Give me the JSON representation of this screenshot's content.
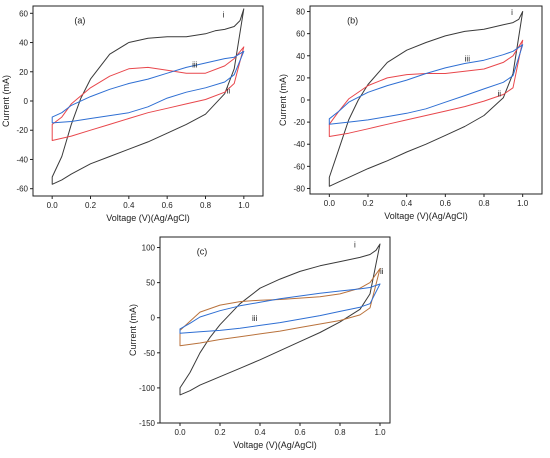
{
  "figure": {
    "colors": {
      "i": "#3a3a3a",
      "ii": "#e8474c",
      "iii": "#2f6fd3",
      "ii_c": "#b9723c"
    }
  },
  "chart_data": [
    {
      "type": "line",
      "panel_label": "(a)",
      "xlabel": "Voltage (V)(Ag/AgCl)",
      "ylabel": "Current (mA)",
      "xlim": [
        -0.1,
        1.1
      ],
      "ylim": [
        -65,
        65
      ],
      "xticks": [
        "0.0",
        "0.2",
        "0.4",
        "0.6",
        "0.8",
        "1.0"
      ],
      "yticks": [
        "-60",
        "-40",
        "-20",
        "0",
        "20",
        "40",
        "60"
      ],
      "series": [
        {
          "name": "i",
          "color": "#3a3a3a",
          "label_at": [
            0.89,
            57
          ],
          "x": [
            0.0,
            0.05,
            0.1,
            0.2,
            0.3,
            0.4,
            0.5,
            0.6,
            0.7,
            0.8,
            0.9,
            0.95,
            1.0,
            0.98,
            0.95,
            0.9,
            0.85,
            0.8,
            0.75,
            0.7,
            0.6,
            0.5,
            0.4,
            0.3,
            0.2,
            0.15,
            0.1,
            0.05,
            0.0
          ],
          "y": [
            -57,
            -54,
            -50,
            -43,
            -38,
            -33,
            -28,
            -22,
            -16,
            -9,
            5,
            22,
            63,
            55,
            51,
            49,
            48,
            46,
            45,
            44,
            44,
            43,
            40,
            32,
            15,
            2,
            -16,
            -38,
            -52
          ]
        },
        {
          "name": "ii",
          "color": "#e8474c",
          "label_at": [
            0.91,
            5
          ],
          "x": [
            0.0,
            0.1,
            0.2,
            0.3,
            0.4,
            0.5,
            0.6,
            0.7,
            0.8,
            0.9,
            0.95,
            1.0,
            0.95,
            0.9,
            0.8,
            0.7,
            0.6,
            0.5,
            0.4,
            0.3,
            0.2,
            0.1,
            0.05,
            0.0
          ],
          "y": [
            -27,
            -24,
            -20,
            -16,
            -12,
            -8,
            -5,
            -2,
            1,
            6,
            12,
            37,
            29,
            24,
            19,
            19,
            21,
            23,
            22,
            17,
            9,
            -2,
            -11,
            -16
          ]
        },
        {
          "name": "iii",
          "color": "#2f6fd3",
          "label_at": [
            0.73,
            23
          ],
          "x": [
            0.0,
            0.1,
            0.2,
            0.3,
            0.4,
            0.5,
            0.6,
            0.7,
            0.8,
            0.9,
            0.95,
            1.0,
            0.95,
            0.9,
            0.8,
            0.7,
            0.6,
            0.5,
            0.4,
            0.3,
            0.2,
            0.1,
            0.05,
            0.0
          ],
          "y": [
            -15,
            -14,
            -12,
            -10,
            -8,
            -4,
            2,
            6,
            9,
            13,
            18,
            34,
            30,
            29,
            26,
            23,
            19,
            15,
            12,
            8,
            3,
            -3,
            -8,
            -11
          ]
        }
      ]
    },
    {
      "type": "line",
      "panel_label": "(b)",
      "xlabel": "Voltage (V)(Ag/AgCl)",
      "ylabel": "Current (mA)",
      "xlim": [
        -0.1,
        1.1
      ],
      "ylim": [
        -85,
        85
      ],
      "xticks": [
        "0.0",
        "0.2",
        "0.4",
        "0.6",
        "0.8",
        "1.0"
      ],
      "yticks": [
        "-80",
        "-60",
        "-40",
        "-20",
        "0",
        "20",
        "40",
        "60",
        "80"
      ],
      "series": [
        {
          "name": "i",
          "color": "#3a3a3a",
          "label_at": [
            0.94,
            77
          ],
          "x": [
            0.0,
            0.05,
            0.1,
            0.2,
            0.3,
            0.4,
            0.5,
            0.6,
            0.7,
            0.8,
            0.9,
            0.95,
            1.0,
            0.98,
            0.95,
            0.9,
            0.85,
            0.8,
            0.7,
            0.6,
            0.5,
            0.4,
            0.3,
            0.2,
            0.15,
            0.1,
            0.05,
            0.0
          ],
          "y": [
            -78,
            -74,
            -70,
            -62,
            -55,
            -47,
            -40,
            -32,
            -24,
            -14,
            2,
            24,
            80,
            73,
            70,
            68,
            66,
            64,
            62,
            58,
            52,
            45,
            34,
            14,
            0,
            -18,
            -44,
            -70
          ]
        },
        {
          "name": "ii",
          "color": "#e8474c",
          "label_at": [
            0.87,
            3
          ],
          "x": [
            0.0,
            0.1,
            0.2,
            0.3,
            0.4,
            0.5,
            0.6,
            0.7,
            0.8,
            0.9,
            0.95,
            1.0,
            0.95,
            0.9,
            0.8,
            0.7,
            0.6,
            0.5,
            0.4,
            0.3,
            0.2,
            0.1,
            0.05,
            0.0
          ],
          "y": [
            -33,
            -30,
            -26,
            -22,
            -18,
            -14,
            -10,
            -6,
            -1,
            5,
            11,
            54,
            40,
            34,
            28,
            26,
            24,
            24,
            23,
            20,
            13,
            1,
            -10,
            -22
          ]
        },
        {
          "name": "iii",
          "color": "#2f6fd3",
          "label_at": [
            0.7,
            35
          ],
          "x": [
            0.0,
            0.1,
            0.2,
            0.3,
            0.4,
            0.5,
            0.6,
            0.7,
            0.8,
            0.9,
            0.95,
            1.0,
            0.95,
            0.9,
            0.8,
            0.7,
            0.6,
            0.5,
            0.4,
            0.3,
            0.2,
            0.1,
            0.05,
            0.0
          ],
          "y": [
            -22,
            -20,
            -18,
            -15,
            -12,
            -8,
            -2,
            4,
            10,
            16,
            22,
            50,
            44,
            41,
            36,
            33,
            29,
            24,
            18,
            13,
            7,
            -2,
            -10,
            -17
          ]
        }
      ]
    },
    {
      "type": "line",
      "panel_label": "(c)",
      "xlabel": "Voltage (V)(Ag/AgCl)",
      "ylabel": "Current (mA)",
      "xlim": [
        -0.1,
        1.05
      ],
      "ylim": [
        -150,
        115
      ],
      "xticks": [
        "0.0",
        "0.2",
        "0.4",
        "0.6",
        "0.8",
        "1.0"
      ],
      "yticks": [
        "-150",
        "-100",
        "-50",
        "0",
        "50",
        "100"
      ],
      "series": [
        {
          "name": "i",
          "color": "#3a3a3a",
          "label_at": [
            0.87,
            100
          ],
          "x": [
            0.0,
            0.05,
            0.1,
            0.2,
            0.3,
            0.4,
            0.5,
            0.6,
            0.7,
            0.8,
            0.9,
            0.95,
            1.0,
            0.98,
            0.95,
            0.9,
            0.85,
            0.8,
            0.7,
            0.6,
            0.5,
            0.4,
            0.3,
            0.2,
            0.15,
            0.1,
            0.05,
            0.0
          ],
          "y": [
            -110,
            -104,
            -96,
            -84,
            -72,
            -60,
            -47,
            -34,
            -21,
            -6,
            12,
            34,
            105,
            96,
            90,
            86,
            83,
            80,
            74,
            66,
            55,
            42,
            20,
            -10,
            -28,
            -50,
            -78,
            -100
          ]
        },
        {
          "name": "ii",
          "color": "#b9723c",
          "label_at": [
            1.0,
            62
          ],
          "x": [
            0.0,
            0.1,
            0.2,
            0.3,
            0.4,
            0.5,
            0.6,
            0.7,
            0.8,
            0.9,
            0.95,
            1.0,
            0.95,
            0.9,
            0.8,
            0.7,
            0.6,
            0.5,
            0.4,
            0.3,
            0.2,
            0.1,
            0.05,
            0.0
          ],
          "y": [
            -40,
            -36,
            -31,
            -27,
            -23,
            -19,
            -14,
            -9,
            -4,
            4,
            14,
            70,
            50,
            42,
            34,
            30,
            28,
            26,
            25,
            23,
            18,
            8,
            -5,
            -18
          ]
        },
        {
          "name": "iii",
          "color": "#2f6fd3",
          "label_at": [
            0.36,
            -5
          ],
          "x": [
            0.0,
            0.1,
            0.2,
            0.3,
            0.4,
            0.5,
            0.6,
            0.7,
            0.8,
            0.9,
            0.95,
            1.0,
            0.95,
            0.9,
            0.8,
            0.7,
            0.6,
            0.5,
            0.4,
            0.3,
            0.2,
            0.1,
            0.05,
            0.0
          ],
          "y": [
            -22,
            -20,
            -18,
            -15,
            -11,
            -7,
            -2,
            3,
            9,
            15,
            20,
            48,
            43,
            41,
            38,
            35,
            31,
            27,
            22,
            17,
            10,
            1,
            -8,
            -16
          ]
        }
      ]
    }
  ]
}
